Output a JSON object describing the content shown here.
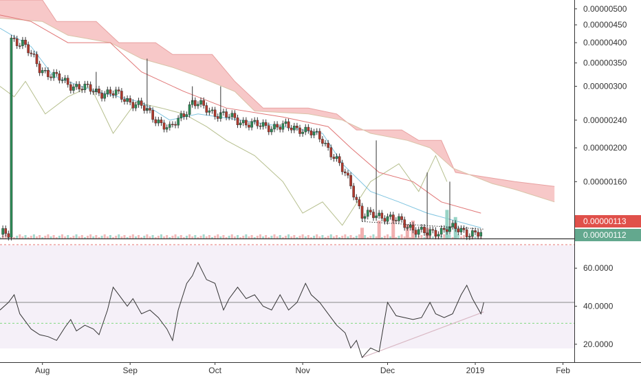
{
  "chart_data": [
    {
      "type": "candlestick",
      "panel": "price",
      "y_scale": "log",
      "ylim": [
        1.1e-06,
        5.3e-06
      ],
      "y_ticks": [
        "0.00000500",
        "0.00000450",
        "0.00000400",
        "0.00000350",
        "0.00000300",
        "0.00000240",
        "0.00000200",
        "0.00000160"
      ],
      "x_ticks": [
        "Aug",
        "Sep",
        "Oct",
        "Nov",
        "Dec",
        "2019",
        "Feb"
      ],
      "price_labels": [
        {
          "value": "0.00000113",
          "color": "#e0504a"
        },
        {
          "value": "0.00000112",
          "color": "#63a88e"
        }
      ],
      "close_anchors": [
        {
          "x": "Jul 21",
          "y": 4.1e-06
        },
        {
          "x": "Jul 25",
          "y": 4e-06
        },
        {
          "x": "Jul 31",
          "y": 3.38e-06
        },
        {
          "x": "Aug 10",
          "y": 3.05e-06
        },
        {
          "x": "Aug 20",
          "y": 2.9e-06
        },
        {
          "x": "Aug 27",
          "y": 2.85e-06
        },
        {
          "x": "Sep 5",
          "y": 2.62e-06
        },
        {
          "x": "Sep 15",
          "y": 2.25e-06
        },
        {
          "x": "Sep 23",
          "y": 2.7e-06
        },
        {
          "x": "Oct 1",
          "y": 2.52e-06
        },
        {
          "x": "Oct 15",
          "y": 2.32e-06
        },
        {
          "x": "Oct 31",
          "y": 2.28e-06
        },
        {
          "x": "Nov 8",
          "y": 2.12e-06
        },
        {
          "x": "Nov 18",
          "y": 1.58e-06
        },
        {
          "x": "Nov 22",
          "y": 1.28e-06
        },
        {
          "x": "Nov 30",
          "y": 1.28e-06
        },
        {
          "x": "Dec 8",
          "y": 1.2e-06
        },
        {
          "x": "Dec 15",
          "y": 1.13e-06
        },
        {
          "x": "Dec 22",
          "y": 1.18e-06
        },
        {
          "x": "Jan 3",
          "y": 1.13e-06
        }
      ],
      "ichimoku_cloud": {
        "color": "#f4b6b6",
        "upper": [
          {
            "x": "Jul 17",
            "y": 5.3e-06
          },
          {
            "x": "Aug 1",
            "y": 5.3e-06
          },
          {
            "x": "Aug 6",
            "y": 4.6e-06
          },
          {
            "x": "Aug 20",
            "y": 4.6e-06
          },
          {
            "x": "Aug 28",
            "y": 4e-06
          },
          {
            "x": "Sep 10",
            "y": 4e-06
          },
          {
            "x": "Sep 16",
            "y": 3.7e-06
          },
          {
            "x": "Sep 30",
            "y": 3.7e-06
          },
          {
            "x": "Oct 8",
            "y": 3.1e-06
          },
          {
            "x": "Oct 18",
            "y": 2.6e-06
          },
          {
            "x": "Nov 3",
            "y": 2.6e-06
          },
          {
            "x": "Nov 13",
            "y": 2.5e-06
          },
          {
            "x": "Nov 20",
            "y": 2.25e-06
          },
          {
            "x": "Dec 6",
            "y": 2.25e-06
          },
          {
            "x": "Dec 12",
            "y": 2.1e-06
          },
          {
            "x": "Dec 20",
            "y": 2.1e-06
          },
          {
            "x": "Dec 25",
            "y": 1.7e-06
          },
          {
            "x": "Jan 15",
            "y": 1.6e-06
          },
          {
            "x": "Jan 29",
            "y": 1.55e-06
          }
        ],
        "lower": [
          {
            "x": "Jul 17",
            "y": 4.7e-06
          },
          {
            "x": "Aug 1",
            "y": 4.6e-06
          },
          {
            "x": "Aug 10",
            "y": 4.2e-06
          },
          {
            "x": "Aug 25",
            "y": 4e-06
          },
          {
            "x": "Sep 5",
            "y": 3.6e-06
          },
          {
            "x": "Sep 16",
            "y": 3.4e-06
          },
          {
            "x": "Sep 25",
            "y": 3.2e-06
          },
          {
            "x": "Oct 8",
            "y": 2.9e-06
          },
          {
            "x": "Oct 15",
            "y": 2.55e-06
          },
          {
            "x": "Nov 3",
            "y": 2.5e-06
          },
          {
            "x": "Nov 15",
            "y": 2.4e-06
          },
          {
            "x": "Nov 25",
            "y": 2.2e-06
          },
          {
            "x": "Dec 8",
            "y": 2.1e-06
          },
          {
            "x": "Dec 16",
            "y": 2e-06
          },
          {
            "x": "Dec 24",
            "y": 1.75e-06
          },
          {
            "x": "Jan 7",
            "y": 1.58e-06
          },
          {
            "x": "Jan 15",
            "y": 1.52e-06
          },
          {
            "x": "Jan 29",
            "y": 1.4e-06
          }
        ]
      },
      "kijun_line": {
        "color": "#e07575",
        "points": [
          {
            "x": "Jul 17",
            "y": 4.8e-06
          },
          {
            "x": "Jul 28",
            "y": 4.6e-06
          },
          {
            "x": "Aug 10",
            "y": 4e-06
          },
          {
            "x": "Aug 25",
            "y": 4e-06
          },
          {
            "x": "Sep 5",
            "y": 3.3e-06
          },
          {
            "x": "Sep 20",
            "y": 2.9e-06
          },
          {
            "x": "Oct 5",
            "y": 2.6e-06
          },
          {
            "x": "Oct 25",
            "y": 2.45e-06
          },
          {
            "x": "Nov 10",
            "y": 2.3e-06
          },
          {
            "x": "Nov 18",
            "y": 2e-06
          },
          {
            "x": "Nov 28",
            "y": 1.7e-06
          },
          {
            "x": "Dec 10",
            "y": 1.6e-06
          },
          {
            "x": "Dec 20",
            "y": 1.4e-06
          },
          {
            "x": "Jan 3",
            "y": 1.3e-06
          }
        ]
      },
      "tenkan_line": {
        "color": "#7fc4e0",
        "points": [
          {
            "x": "Jul 17",
            "y": 4.4e-06
          },
          {
            "x": "Jul 28",
            "y": 3.9e-06
          },
          {
            "x": "Aug 5",
            "y": 3.2e-06
          },
          {
            "x": "Aug 20",
            "y": 2.9e-06
          },
          {
            "x": "Sep 5",
            "y": 2.7e-06
          },
          {
            "x": "Sep 15",
            "y": 2.4e-06
          },
          {
            "x": "Sep 25",
            "y": 2.5e-06
          },
          {
            "x": "Oct 10",
            "y": 2.4e-06
          },
          {
            "x": "Oct 25",
            "y": 2.3e-06
          },
          {
            "x": "Nov 8",
            "y": 2.2e-06
          },
          {
            "x": "Nov 15",
            "y": 1.8e-06
          },
          {
            "x": "Nov 25",
            "y": 1.5e-06
          },
          {
            "x": "Dec 5",
            "y": 1.4e-06
          },
          {
            "x": "Dec 15",
            "y": 1.3e-06
          },
          {
            "x": "Jan 3",
            "y": 1.18e-06
          }
        ]
      },
      "lagging_line": {
        "color": "#b6bf8e",
        "points": [
          {
            "x": "Jul 17",
            "y": 3e-06
          },
          {
            "x": "Jul 22",
            "y": 2.8e-06
          },
          {
            "x": "Jul 26",
            "y": 3.1e-06
          },
          {
            "x": "Aug 2",
            "y": 2.5e-06
          },
          {
            "x": "Aug 10",
            "y": 2.8e-06
          },
          {
            "x": "Aug 18",
            "y": 3e-06
          },
          {
            "x": "Aug 26",
            "y": 2.2e-06
          },
          {
            "x": "Sep 3",
            "y": 2.7e-06
          },
          {
            "x": "Sep 12",
            "y": 2.6e-06
          },
          {
            "x": "Sep 20",
            "y": 2.5e-06
          },
          {
            "x": "Sep 28",
            "y": 2.3e-06
          },
          {
            "x": "Oct 5",
            "y": 2.1e-06
          },
          {
            "x": "Oct 15",
            "y": 1.9e-06
          },
          {
            "x": "Oct 25",
            "y": 1.6e-06
          },
          {
            "x": "Nov 1",
            "y": 1.3e-06
          },
          {
            "x": "Nov 8",
            "y": 1.4e-06
          },
          {
            "x": "Nov 15",
            "y": 1.2e-06
          },
          {
            "x": "Nov 25",
            "y": 1.6e-06
          },
          {
            "x": "Dec 5",
            "y": 1.8e-06
          },
          {
            "x": "Dec 12",
            "y": 1.5e-06
          },
          {
            "x": "Dec 18",
            "y": 1.9e-06
          },
          {
            "x": "Dec 22",
            "y": 1.6e-06
          }
        ]
      },
      "volume": {
        "up_color": "#8dcfc0",
        "down_color": "#f0a8a8",
        "spikes": [
          {
            "x": "Nov 22",
            "y": 0.3,
            "color": "#f0a8a8"
          },
          {
            "x": "Nov 28",
            "y": 0.5,
            "color": "#f0a8a8"
          },
          {
            "x": "Dec 3",
            "y": 0.65,
            "color": "#f0a8a8"
          },
          {
            "x": "Dec 8",
            "y": 0.4,
            "color": "#f0a8a8"
          },
          {
            "x": "Dec 10",
            "y": 0.5,
            "color": "#f0a8a8"
          },
          {
            "x": "Dec 15",
            "y": 0.3,
            "color": "#f0a8a8"
          },
          {
            "x": "Dec 22",
            "y": 0.8,
            "color": "#8dcfc0"
          },
          {
            "x": "Dec 25",
            "y": 0.6,
            "color": "#8dcfc0"
          }
        ]
      }
    },
    {
      "type": "line",
      "panel": "indicator",
      "ylim": [
        12,
        72
      ],
      "y_ticks": [
        "60.0000",
        "40.0000",
        "20.0000"
      ],
      "color": "#333333",
      "reference_lines": [
        {
          "y": 42,
          "color": "#888888",
          "style": "solid"
        },
        {
          "y": 31,
          "color": "#7dd87d",
          "style": "dashed"
        }
      ],
      "trendline": {
        "from": {
          "x": "Nov 22",
          "y": 13
        },
        "to": {
          "x": "Jan 4",
          "y": 37
        },
        "color": "#d9b8c4"
      },
      "points": [
        {
          "x": "Jul 17",
          "y": 38
        },
        {
          "x": "Jul 20",
          "y": 42
        },
        {
          "x": "Jul 22",
          "y": 46
        },
        {
          "x": "Jul 24",
          "y": 36
        },
        {
          "x": "Jul 26",
          "y": 32
        },
        {
          "x": "Jul 28",
          "y": 28
        },
        {
          "x": "Jul 31",
          "y": 25
        },
        {
          "x": "Aug 3",
          "y": 24
        },
        {
          "x": "Aug 6",
          "y": 22
        },
        {
          "x": "Aug 9",
          "y": 29
        },
        {
          "x": "Aug 11",
          "y": 33
        },
        {
          "x": "Aug 13",
          "y": 27
        },
        {
          "x": "Aug 16",
          "y": 30
        },
        {
          "x": "Aug 19",
          "y": 28
        },
        {
          "x": "Aug 21",
          "y": 25
        },
        {
          "x": "Aug 24",
          "y": 38
        },
        {
          "x": "Aug 26",
          "y": 50
        },
        {
          "x": "Aug 28",
          "y": 46
        },
        {
          "x": "Aug 31",
          "y": 40
        },
        {
          "x": "Sep 2",
          "y": 44
        },
        {
          "x": "Sep 5",
          "y": 36
        },
        {
          "x": "Sep 8",
          "y": 38
        },
        {
          "x": "Sep 11",
          "y": 34
        },
        {
          "x": "Sep 14",
          "y": 28
        },
        {
          "x": "Sep 16",
          "y": 22
        },
        {
          "x": "Sep 18",
          "y": 38
        },
        {
          "x": "Sep 21",
          "y": 52
        },
        {
          "x": "Sep 23",
          "y": 56
        },
        {
          "x": "Sep 25",
          "y": 63
        },
        {
          "x": "Sep 28",
          "y": 54
        },
        {
          "x": "Oct 1",
          "y": 52
        },
        {
          "x": "Oct 4",
          "y": 38
        },
        {
          "x": "Oct 6",
          "y": 44
        },
        {
          "x": "Oct 9",
          "y": 50
        },
        {
          "x": "Oct 12",
          "y": 44
        },
        {
          "x": "Oct 15",
          "y": 46
        },
        {
          "x": "Oct 18",
          "y": 40
        },
        {
          "x": "Oct 21",
          "y": 38
        },
        {
          "x": "Oct 24",
          "y": 46
        },
        {
          "x": "Oct 27",
          "y": 38
        },
        {
          "x": "Oct 30",
          "y": 42
        },
        {
          "x": "Nov 2",
          "y": 52
        },
        {
          "x": "Nov 4",
          "y": 46
        },
        {
          "x": "Nov 7",
          "y": 42
        },
        {
          "x": "Nov 10",
          "y": 36
        },
        {
          "x": "Nov 13",
          "y": 30
        },
        {
          "x": "Nov 16",
          "y": 26
        },
        {
          "x": "Nov 18",
          "y": 18
        },
        {
          "x": "Nov 20",
          "y": 22
        },
        {
          "x": "Nov 22",
          "y": 13
        },
        {
          "x": "Nov 25",
          "y": 18
        },
        {
          "x": "Nov 28",
          "y": 16
        },
        {
          "x": "Dec 1",
          "y": 42
        },
        {
          "x": "Dec 4",
          "y": 35
        },
        {
          "x": "Dec 7",
          "y": 34
        },
        {
          "x": "Dec 10",
          "y": 33
        },
        {
          "x": "Dec 13",
          "y": 34
        },
        {
          "x": "Dec 16",
          "y": 42
        },
        {
          "x": "Dec 18",
          "y": 36
        },
        {
          "x": "Dec 21",
          "y": 34
        },
        {
          "x": "Dec 24",
          "y": 36
        },
        {
          "x": "Dec 27",
          "y": 46
        },
        {
          "x": "Dec 29",
          "y": 51
        },
        {
          "x": "Dec 31",
          "y": 44
        },
        {
          "x": "Jan 3",
          "y": 36
        },
        {
          "x": "Jan 4",
          "y": 42
        }
      ]
    }
  ]
}
